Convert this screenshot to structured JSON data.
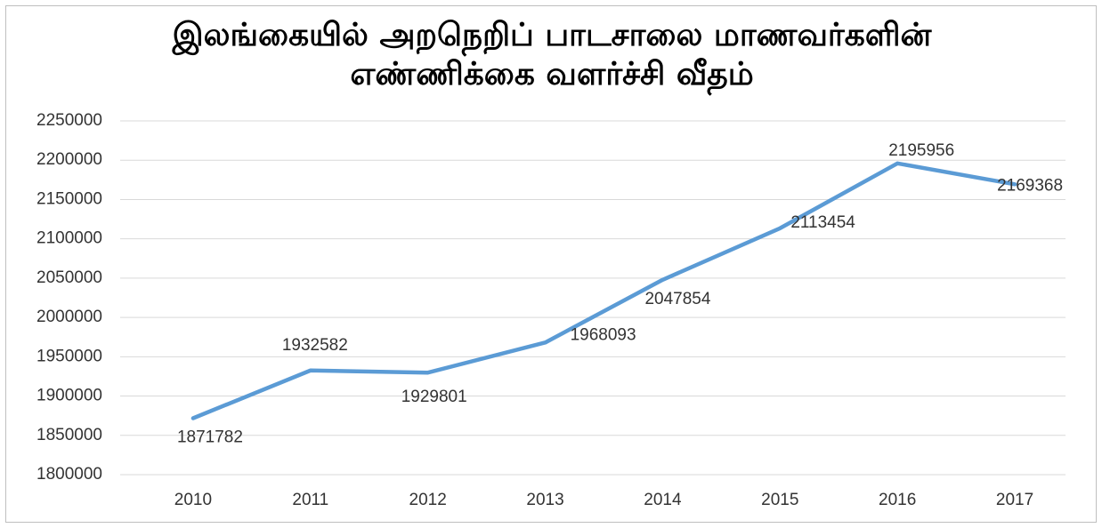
{
  "chart_data": {
    "type": "line",
    "title": "இலங்கையில் அறநெறிப் பாடசாலை மாணவர்களின் எண்ணிக்கை வளர்ச்சி வீதம்",
    "categories": [
      "2010",
      "2011",
      "2012",
      "2013",
      "2014",
      "2015",
      "2016",
      "2017"
    ],
    "series": [
      {
        "color": "#5b9bd5",
        "values": [
          1871782,
          1932582,
          1929801,
          1968093,
          2047854,
          2113454,
          2195956,
          2169368
        ]
      }
    ],
    "ylim": [
      1800000,
      2250000
    ],
    "yticks": [
      1800000,
      1850000,
      1900000,
      1950000,
      2000000,
      2050000,
      2100000,
      2150000,
      2200000,
      2250000
    ],
    "grid": true
  }
}
